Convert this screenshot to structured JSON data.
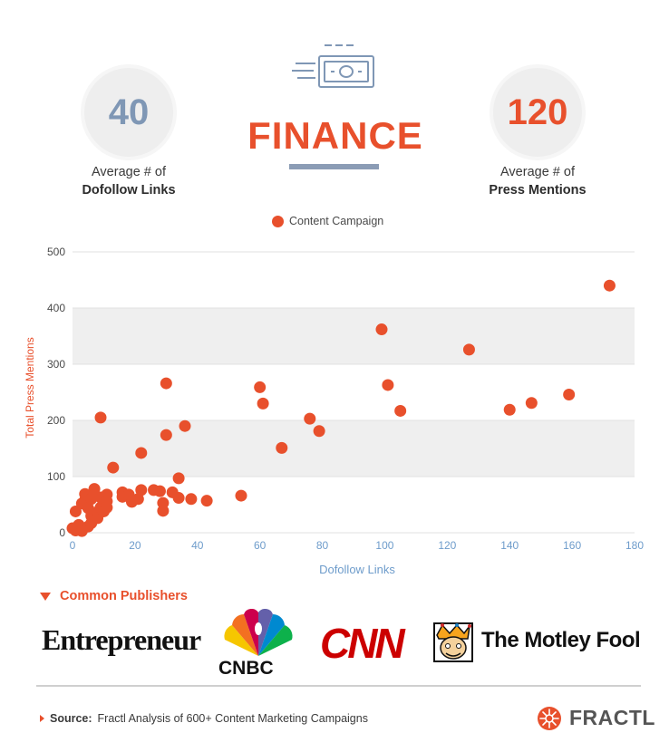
{
  "header": {
    "title": "FINANCE",
    "icon": "money-bill-icon",
    "left_stat": {
      "value": "40",
      "caption_line1": "Average # of",
      "caption_line2": "Dofollow Links",
      "color": "#7f97b5"
    },
    "right_stat": {
      "value": "120",
      "caption_line1": "Average # of",
      "caption_line2": "Press Mentions",
      "color": "#e8502c"
    }
  },
  "colors": {
    "accent": "#e8502c",
    "axis_blue": "#6e9ccb",
    "band": "#efefef"
  },
  "chart_data": {
    "type": "scatter",
    "legend": [
      "Content Campaign"
    ],
    "legend_position": "top-center",
    "xlabel": "Dofollow Links",
    "ylabel": "Total Press Mentions",
    "xlim": [
      0,
      180
    ],
    "ylim": [
      0,
      500
    ],
    "xticks": [
      0,
      20,
      40,
      60,
      80,
      100,
      120,
      140,
      160,
      180
    ],
    "yticks": [
      0,
      100,
      200,
      300,
      400,
      500
    ],
    "grid": "alternating horizontal bands",
    "series": [
      {
        "name": "Content Campaign",
        "color": "#e8502c",
        "points": [
          [
            0,
            8
          ],
          [
            1,
            4
          ],
          [
            1,
            38
          ],
          [
            2,
            14
          ],
          [
            3,
            52
          ],
          [
            3,
            3
          ],
          [
            4,
            58
          ],
          [
            4,
            69
          ],
          [
            5,
            44
          ],
          [
            5,
            11
          ],
          [
            6,
            60
          ],
          [
            6,
            30
          ],
          [
            6,
            17
          ],
          [
            7,
            78
          ],
          [
            7,
            67
          ],
          [
            8,
            37
          ],
          [
            8,
            26
          ],
          [
            9,
            45
          ],
          [
            9,
            63
          ],
          [
            9,
            205
          ],
          [
            10,
            38
          ],
          [
            11,
            68
          ],
          [
            11,
            56
          ],
          [
            11,
            45
          ],
          [
            13,
            116
          ],
          [
            16,
            72
          ],
          [
            16,
            64
          ],
          [
            18,
            68
          ],
          [
            19,
            55
          ],
          [
            21,
            60
          ],
          [
            22,
            76
          ],
          [
            22,
            142
          ],
          [
            26,
            76
          ],
          [
            28,
            74
          ],
          [
            29,
            53
          ],
          [
            29,
            39
          ],
          [
            30,
            174
          ],
          [
            30,
            266
          ],
          [
            32,
            72
          ],
          [
            34,
            97
          ],
          [
            34,
            62
          ],
          [
            36,
            190
          ],
          [
            38,
            60
          ],
          [
            43,
            57
          ],
          [
            54,
            66
          ],
          [
            60,
            259
          ],
          [
            61,
            230
          ],
          [
            67,
            151
          ],
          [
            76,
            203
          ],
          [
            79,
            181
          ],
          [
            99,
            362
          ],
          [
            101,
            263
          ],
          [
            105,
            217
          ],
          [
            127,
            326
          ],
          [
            140,
            219
          ],
          [
            147,
            231
          ],
          [
            159,
            246
          ],
          [
            172,
            440
          ]
        ]
      }
    ]
  },
  "publishers": {
    "title": "Common Publishers",
    "entrepreneur": "Entrepreneur",
    "cnbc": "CNBC",
    "cnn": "CNN",
    "motley_fool": "The Motley Fool"
  },
  "footer": {
    "source_label": "Source:",
    "source_text": "Fractl Analysis of 600+ Content Marketing Campaigns",
    "brand": "FRACTL"
  }
}
